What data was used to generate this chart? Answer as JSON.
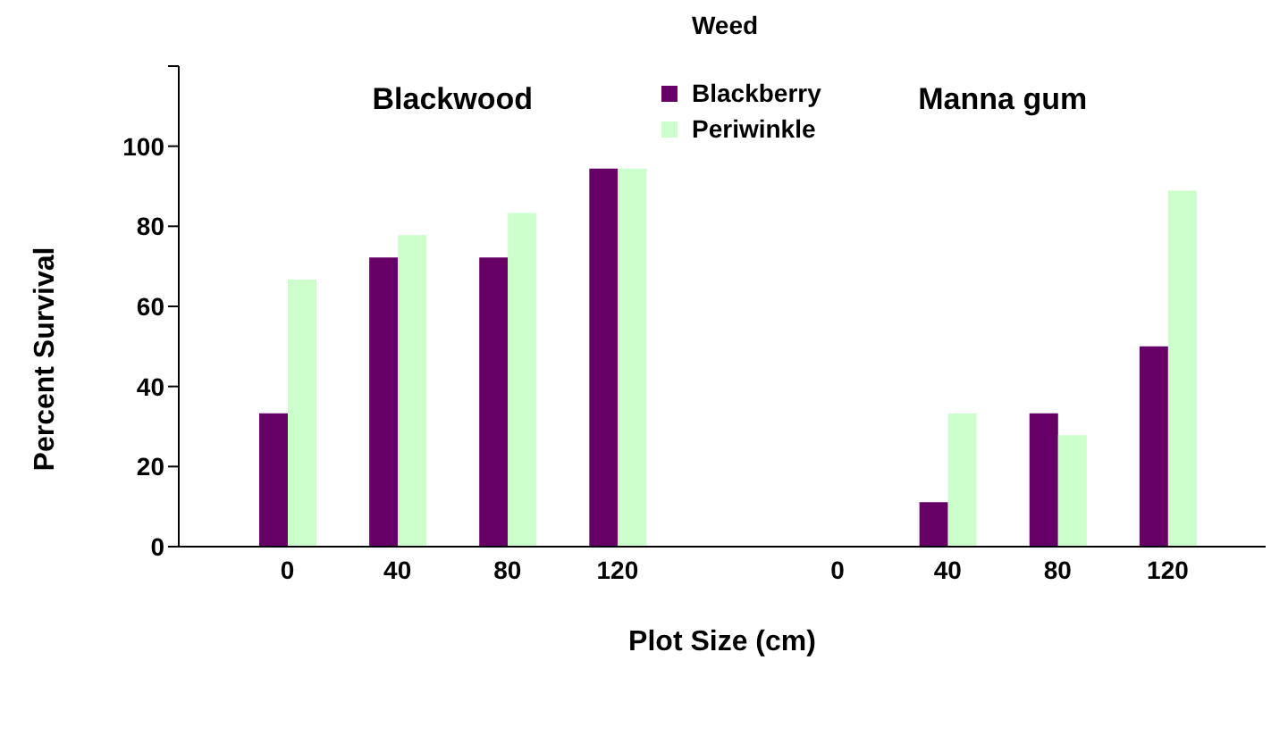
{
  "chart_data": {
    "type": "bar",
    "legend_title": "Weed",
    "xlabel": "Plot Size (cm)",
    "ylabel": "Percent Survival",
    "annotations": [
      "Blackwood",
      "Manna gum"
    ],
    "categories": [
      "0",
      "40",
      "80",
      "120",
      null,
      "0",
      "40",
      "80",
      "120"
    ],
    "series": [
      {
        "name": "Blackberry",
        "color": "#660066",
        "values": [
          33.3,
          72.2,
          72.2,
          94.4,
          null,
          0,
          11.1,
          33.3,
          50
        ]
      },
      {
        "name": "Periwinkle",
        "color": "#ccffcc",
        "values": [
          66.7,
          77.8,
          83.3,
          94.4,
          null,
          0,
          33.3,
          27.8,
          88.9
        ]
      }
    ],
    "ylim": [
      0,
      120
    ],
    "yticks": [
      0,
      20,
      40,
      60,
      80,
      100,
      {
        "value": 120,
        "label": null
      }
    ],
    "grid": false,
    "legend": "top"
  }
}
